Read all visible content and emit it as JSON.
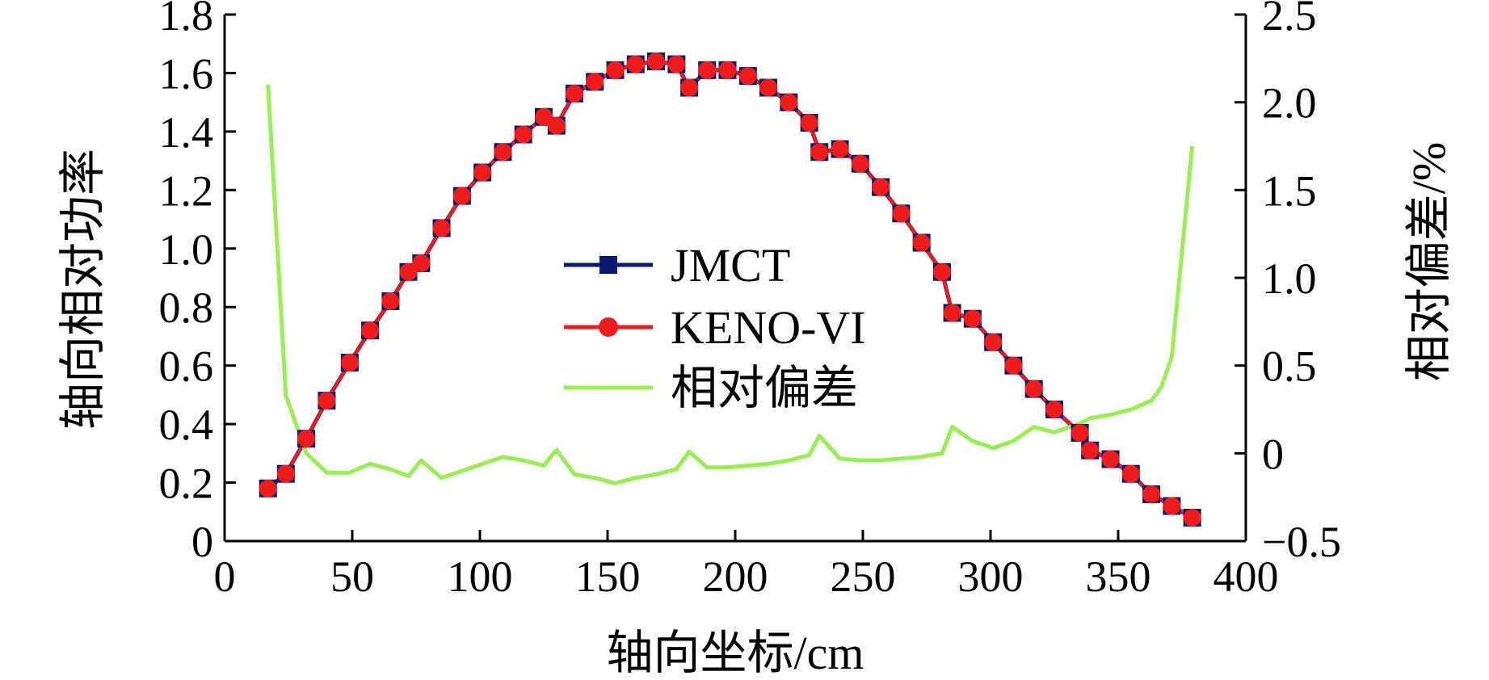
{
  "chart_data": {
    "type": "line",
    "xlabel": "轴向坐标/cm",
    "ylabel": "轴向相对功率",
    "y2label": "相对偏差/%",
    "xlim": [
      0,
      400
    ],
    "ylim": [
      0,
      1.8
    ],
    "y2lim": [
      -0.5,
      2.5
    ],
    "x_ticks": [
      0,
      50,
      100,
      150,
      200,
      250,
      300,
      350,
      400
    ],
    "x_tick_labels": [
      "0",
      "50",
      "100",
      "150",
      "200",
      "250",
      "300",
      "350",
      "400"
    ],
    "y_ticks": [
      0,
      0.2,
      0.4,
      0.6,
      0.8,
      1.0,
      1.2,
      1.4,
      1.6,
      1.8
    ],
    "y_tick_labels": [
      "0",
      "0.2",
      "0.4",
      "0.6",
      "0.8",
      "1.0",
      "1.2",
      "1.4",
      "1.6",
      "1.8"
    ],
    "y2_ticks": [
      -0.5,
      0,
      0.5,
      1.0,
      1.5,
      2.0,
      2.5
    ],
    "y2_tick_labels": [
      "−0.5",
      "0",
      "0.5",
      "1.0",
      "1.5",
      "2.0",
      "2.5"
    ],
    "grid": false,
    "legend_position": "center",
    "x": [
      17,
      24,
      32,
      40,
      49,
      57,
      65,
      72,
      77,
      85,
      93,
      101,
      109,
      117,
      125,
      130,
      137,
      145,
      153,
      161,
      169,
      177,
      182,
      189,
      197,
      205,
      213,
      221,
      229,
      233,
      241,
      249,
      257,
      265,
      273,
      281,
      285,
      293,
      301,
      309,
      317,
      325,
      335,
      339,
      347,
      355,
      363,
      371,
      379
    ],
    "series": [
      {
        "name": "JMCT",
        "axis": "left",
        "marker": "square",
        "color": "#0a1a6e",
        "values": [
          0.18,
          0.23,
          0.35,
          0.48,
          0.61,
          0.72,
          0.82,
          0.92,
          0.95,
          1.07,
          1.18,
          1.26,
          1.33,
          1.39,
          1.45,
          1.42,
          1.53,
          1.57,
          1.61,
          1.63,
          1.64,
          1.63,
          1.55,
          1.61,
          1.61,
          1.59,
          1.55,
          1.5,
          1.43,
          1.33,
          1.34,
          1.29,
          1.21,
          1.12,
          1.02,
          0.92,
          0.78,
          0.76,
          0.68,
          0.6,
          0.52,
          0.45,
          0.37,
          0.31,
          0.28,
          0.23,
          0.16,
          0.12,
          0.08
        ]
      },
      {
        "name": "KENO-VI",
        "axis": "left",
        "marker": "circle",
        "color": "#ee1c1c",
        "values": [
          0.18,
          0.23,
          0.35,
          0.48,
          0.61,
          0.72,
          0.82,
          0.92,
          0.95,
          1.07,
          1.18,
          1.26,
          1.33,
          1.39,
          1.45,
          1.42,
          1.53,
          1.57,
          1.61,
          1.63,
          1.64,
          1.63,
          1.55,
          1.61,
          1.61,
          1.59,
          1.55,
          1.5,
          1.43,
          1.33,
          1.34,
          1.29,
          1.21,
          1.12,
          1.02,
          0.92,
          0.78,
          0.76,
          0.68,
          0.6,
          0.52,
          0.45,
          0.37,
          0.31,
          0.28,
          0.23,
          0.16,
          0.12,
          0.08
        ]
      },
      {
        "name": "相对偏差",
        "axis": "right",
        "marker": "none",
        "color": "#99ee55",
        "x": [
          17,
          24,
          32,
          40,
          49,
          57,
          65,
          72,
          77,
          85,
          93,
          101,
          109,
          117,
          125,
          130,
          137,
          145,
          153,
          161,
          169,
          177,
          182,
          189,
          197,
          205,
          213,
          221,
          229,
          233,
          241,
          249,
          257,
          265,
          273,
          281,
          285,
          293,
          301,
          309,
          317,
          325,
          335,
          339,
          347,
          355,
          363,
          367,
          371,
          379
        ],
        "values": [
          2.1,
          0.33,
          0.0,
          -0.11,
          -0.11,
          -0.06,
          -0.09,
          -0.13,
          -0.04,
          -0.14,
          -0.1,
          -0.06,
          -0.02,
          -0.04,
          -0.07,
          0.02,
          -0.12,
          -0.14,
          -0.17,
          -0.14,
          -0.12,
          -0.09,
          0.01,
          -0.08,
          -0.08,
          -0.07,
          -0.06,
          -0.04,
          -0.01,
          0.1,
          -0.03,
          -0.04,
          -0.04,
          -0.03,
          -0.02,
          0.0,
          0.15,
          0.07,
          0.03,
          0.07,
          0.15,
          0.12,
          0.17,
          0.2,
          0.22,
          0.25,
          0.3,
          0.38,
          0.55,
          1.75
        ]
      }
    ]
  }
}
